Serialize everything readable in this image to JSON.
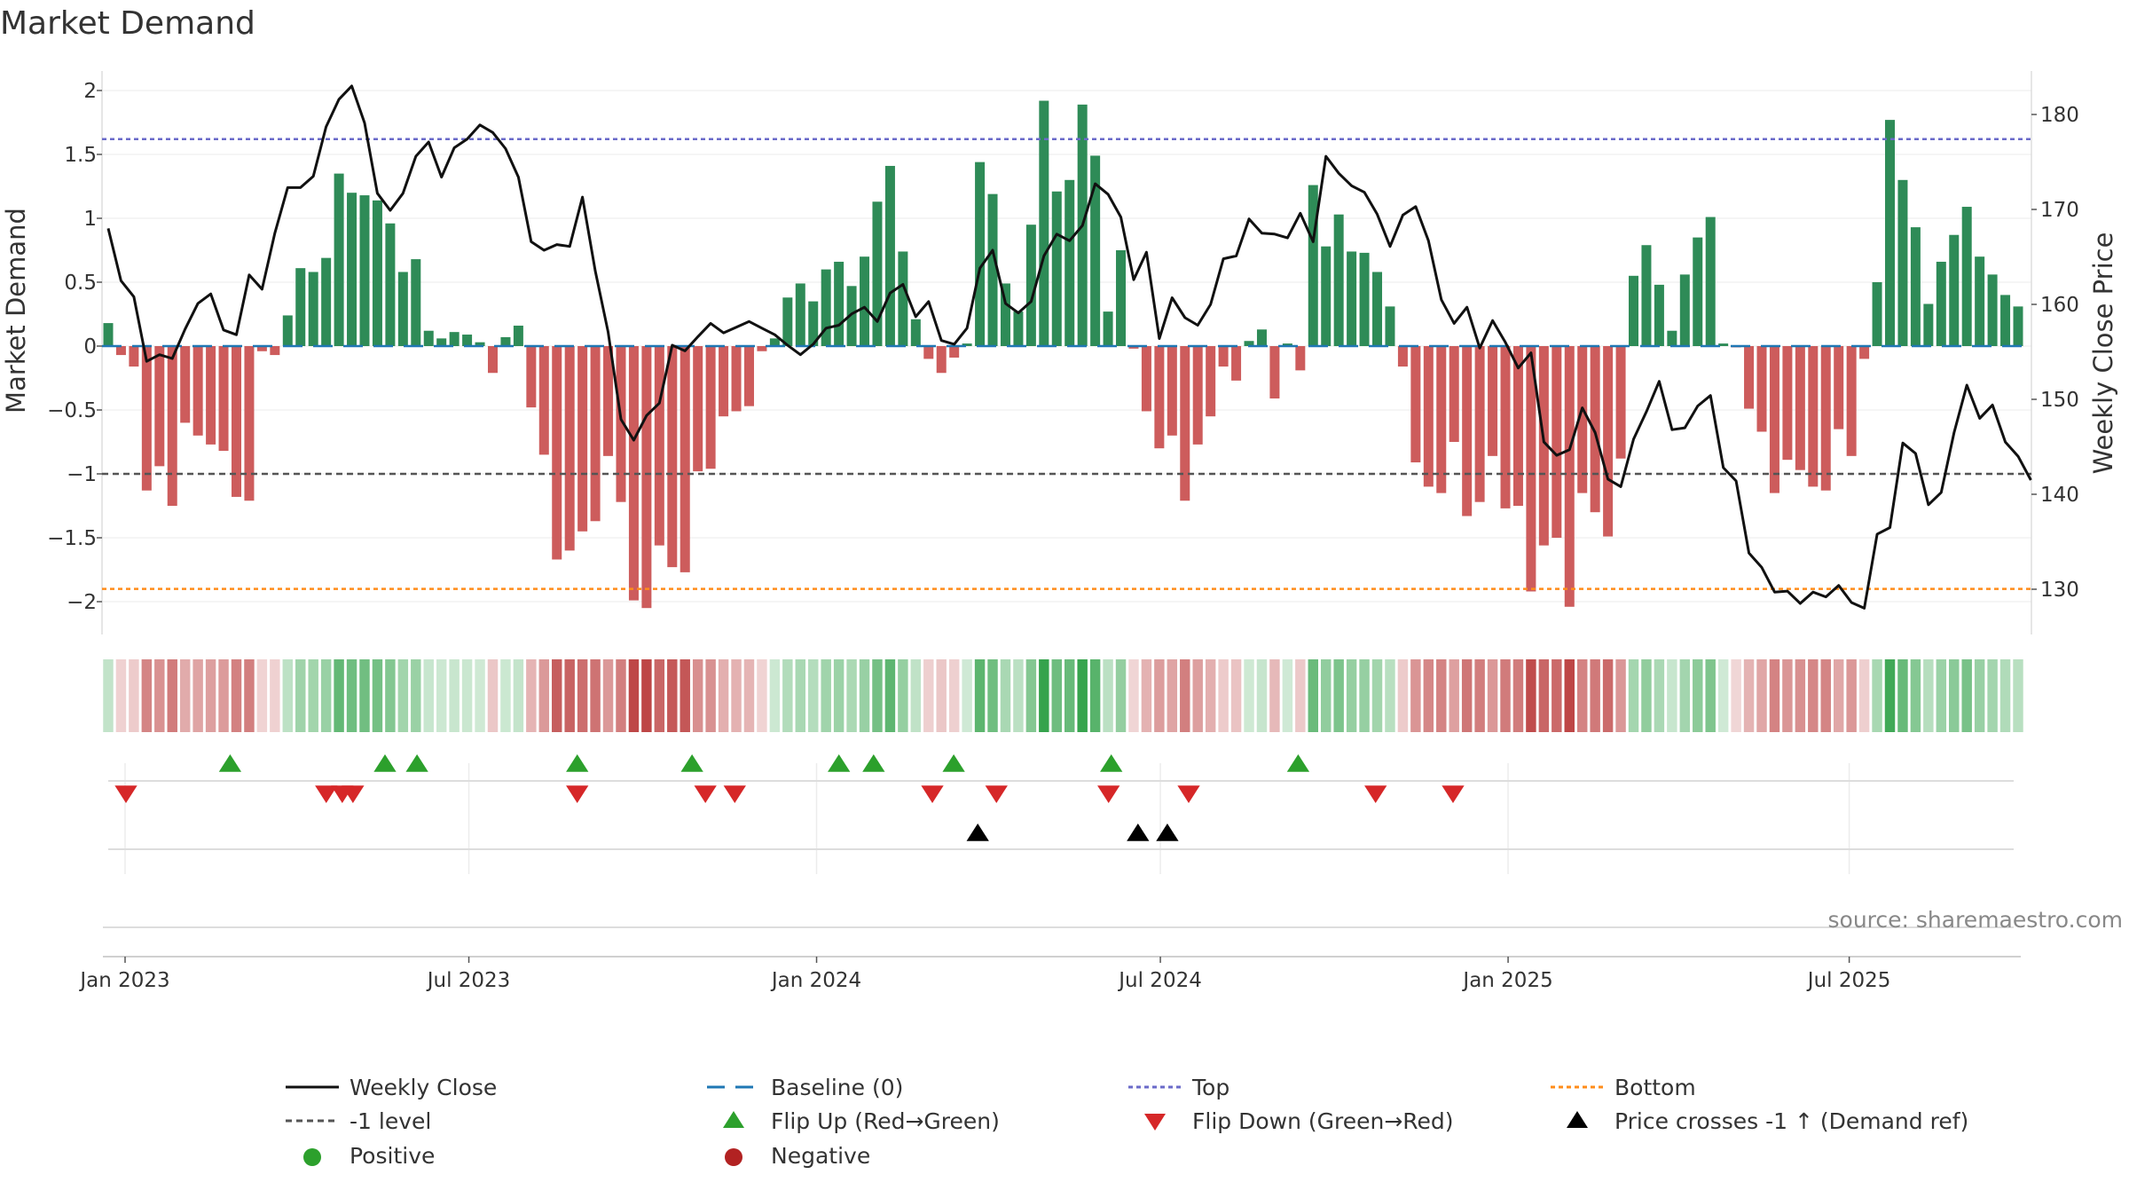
{
  "chart_data": {
    "type": "bar",
    "title": "Market Demand",
    "ylabel": "Market Demand",
    "y2label": "Weekly Close Price",
    "ylim": [
      -2.3,
      2.2
    ],
    "y2lim": [
      125,
      183
    ],
    "yticks": [
      2,
      1.5,
      1,
      0.5,
      0,
      -0.5,
      -1,
      -1.5,
      -2
    ],
    "ytick_labels": [
      "2",
      "1.5",
      "1",
      "0.5",
      "0",
      "−0.5",
      "−1",
      "−1.5",
      "−2"
    ],
    "y2ticks": [
      180,
      170,
      160,
      150,
      140,
      130
    ],
    "y2tick_labels": [
      "180",
      "170",
      "160",
      "150",
      "140",
      "130"
    ],
    "xticks": [
      {
        "label": "Jan 2023",
        "week": 0
      },
      {
        "label": "Jul 2023",
        "week": 26
      },
      {
        "label": "Jan 2024",
        "week": 52.3
      },
      {
        "label": "Jul 2024",
        "week": 78.3
      },
      {
        "label": "Jan 2025",
        "week": 104.6
      },
      {
        "label": "Jul 2025",
        "week": 130.4
      }
    ],
    "week_range": [
      -1.7,
      142
    ],
    "top_level": 1.62,
    "bottom_level": -1.9,
    "minus1_level": -1,
    "demand": [
      0.18,
      -0.07,
      -0.16,
      -1.13,
      -0.94,
      -1.25,
      -0.6,
      -0.7,
      -0.77,
      -0.82,
      -1.18,
      -1.21,
      -0.04,
      -0.07,
      0.24,
      0.61,
      0.58,
      0.69,
      1.35,
      1.2,
      1.18,
      1.14,
      0.96,
      0.58,
      0.68,
      0.12,
      0.06,
      0.11,
      0.09,
      0.03,
      -0.21,
      0.07,
      0.16,
      -0.48,
      -0.85,
      -1.67,
      -1.6,
      -1.45,
      -1.37,
      -0.86,
      -1.22,
      -1.99,
      -2.05,
      -1.56,
      -1.73,
      -1.77,
      -0.98,
      -0.96,
      -0.55,
      -0.51,
      -0.47,
      -0.04,
      0.06,
      0.38,
      0.49,
      0.35,
      0.6,
      0.66,
      0.47,
      0.7,
      1.13,
      1.41,
      0.74,
      0.21,
      -0.1,
      -0.21,
      -0.09,
      0.02,
      1.44,
      1.19,
      0.49,
      0.27,
      0.95,
      1.92,
      1.21,
      1.3,
      1.89,
      1.49,
      0.27,
      0.75,
      -0.02,
      -0.51,
      -0.8,
      -0.7,
      -1.21,
      -0.77,
      -0.55,
      -0.16,
      -0.27,
      0.04,
      0.13,
      -0.41,
      0.02,
      -0.19,
      1.26,
      0.78,
      1.03,
      0.74,
      0.73,
      0.58,
      0.31,
      -0.16,
      -0.91,
      -1.1,
      -1.15,
      -0.75,
      -1.33,
      -1.22,
      -0.86,
      -1.27,
      -1.25,
      -1.92,
      -1.56,
      -1.5,
      -2.04,
      -1.15,
      -1.3,
      -1.49,
      -0.88,
      0.55,
      0.79,
      0.48,
      0.12,
      0.56,
      0.85,
      1.01,
      0.02,
      -0.01,
      -0.49,
      -0.67,
      -1.15,
      -0.89,
      -0.97,
      -1.1,
      -1.13,
      -0.65,
      -0.86,
      -0.1,
      0.5,
      1.77,
      1.3,
      0.93,
      0.33,
      0.66,
      0.87,
      1.09,
      0.7,
      0.56,
      0.4,
      0.31
    ],
    "price": [
      168.0,
      162.5,
      160.8,
      154.0,
      154.7,
      154.3,
      157.4,
      160.1,
      161.1,
      157.3,
      156.8,
      163.1,
      161.6,
      167.5,
      172.3,
      172.3,
      173.5,
      178.7,
      181.6,
      183.0,
      179.1,
      171.7,
      169.9,
      171.7,
      175.6,
      177.1,
      173.4,
      176.5,
      177.4,
      178.9,
      178.1,
      176.4,
      173.4,
      166.6,
      165.7,
      166.3,
      166.1,
      171.3,
      163.5,
      157.1,
      147.9,
      145.7,
      148.3,
      149.6,
      155.7,
      155.1,
      156.6,
      158.0,
      157.0,
      157.6,
      158.2,
      157.5,
      156.8,
      155.7,
      154.7,
      155.8,
      157.5,
      157.8,
      159.0,
      159.7,
      158.2,
      161.2,
      162.1,
      158.7,
      160.3,
      156.2,
      155.8,
      157.5,
      163.8,
      165.7,
      160.1,
      159.1,
      160.3,
      165.1,
      167.4,
      166.7,
      168.3,
      172.7,
      171.6,
      169.2,
      162.6,
      165.5,
      156.4,
      160.7,
      158.6,
      157.8,
      160.0,
      164.8,
      165.1,
      169.0,
      167.5,
      167.4,
      167.0,
      169.6,
      166.6,
      175.6,
      173.8,
      172.5,
      171.8,
      169.5,
      166.1,
      169.4,
      170.3,
      166.7,
      160.5,
      158.0,
      159.7,
      155.4,
      158.3,
      156.0,
      153.3,
      154.9,
      145.5,
      144.1,
      144.7,
      149.1,
      146.5,
      141.6,
      140.8,
      145.8,
      148.7,
      151.9,
      146.8,
      147.0,
      149.3,
      150.4,
      142.8,
      141.4,
      133.8,
      132.3,
      129.7,
      129.8,
      128.5,
      129.7,
      129.2,
      130.4,
      128.6,
      128.0,
      135.8,
      136.5,
      145.4,
      144.3,
      138.9,
      140.2,
      146.5,
      151.5,
      148.0,
      149.4,
      145.5,
      144.0,
      141.5
    ]
  },
  "source": "source: sharemaestro.com",
  "signals": {
    "flip_up": [
      4.1,
      9.9,
      11.1,
      17.1,
      21.4,
      26.9,
      28.2,
      31.2,
      37.1,
      44.1
    ],
    "flip_down": [
      0.2,
      7.7,
      8.3,
      8.7,
      17.1,
      21.9,
      23.0,
      30.4,
      32.8,
      37.0,
      40.0,
      47.0,
      49.9
    ],
    "price_cross": [
      32.1,
      38.1,
      39.2
    ]
  },
  "colors": {
    "positive": "#2e8b57",
    "negative": "#cd5c5c",
    "price_line": "#111111",
    "top_line": "#6a6ac9",
    "bottom_line": "#ff8c1a",
    "minus1_line": "#555555",
    "baseline": "#1f77b4",
    "flip_up": "#2ca02c",
    "flip_down": "#d62728",
    "cross": "#000000",
    "legend_positive": "#2ca02c",
    "legend_negative": "#b22222"
  },
  "legend": [
    {
      "key": "weekly_close",
      "label": "Weekly Close"
    },
    {
      "key": "baseline",
      "label": "Baseline (0)"
    },
    {
      "key": "top",
      "label": "Top"
    },
    {
      "key": "bottom",
      "label": "Bottom"
    },
    {
      "key": "minus1",
      "label": "-1 level"
    },
    {
      "key": "flip_up",
      "label": "Flip Up (Red→Green)"
    },
    {
      "key": "flip_down",
      "label": "Flip Down (Green→Red)"
    },
    {
      "key": "price_cross",
      "label": "Price crosses -1 ↑ (Demand ref)"
    },
    {
      "key": "positive",
      "label": "Positive"
    },
    {
      "key": "negative",
      "label": "Negative"
    }
  ]
}
